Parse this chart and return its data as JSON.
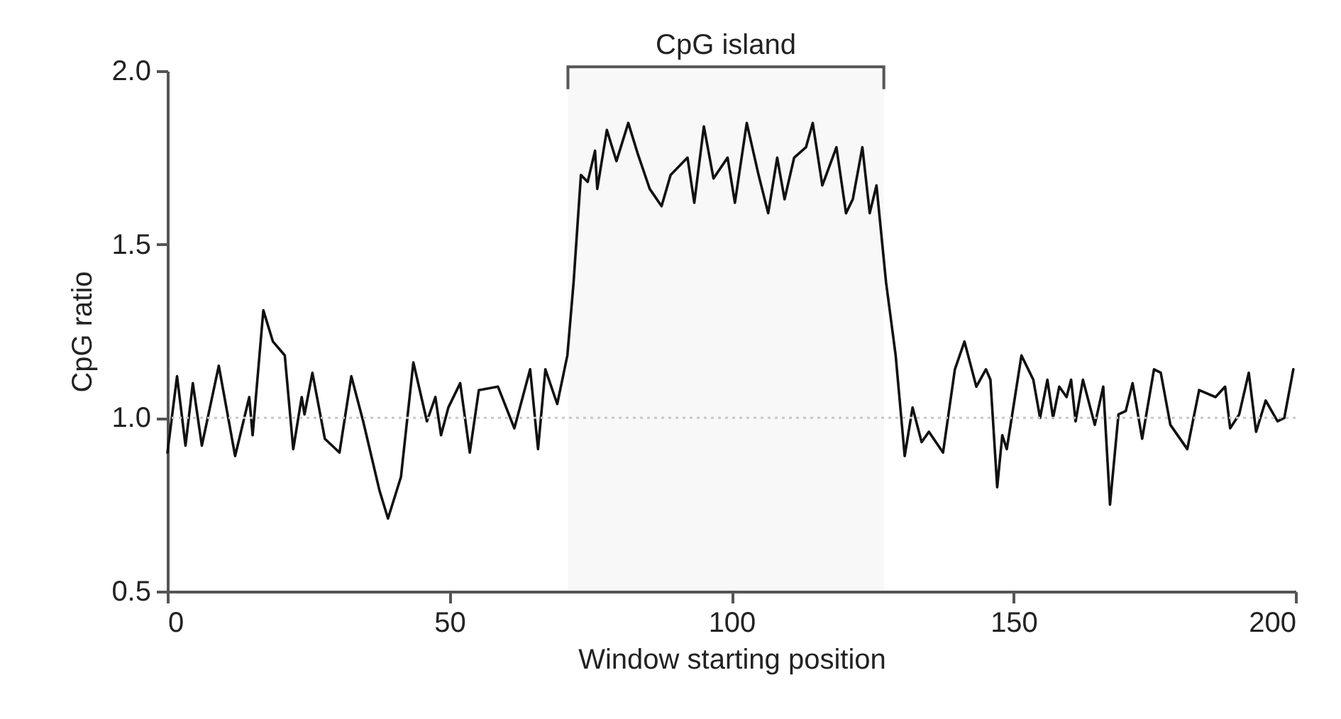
{
  "chart_data": {
    "type": "line",
    "xlabel": "Window starting position",
    "ylabel": "CpG ratio",
    "xlim": [
      0,
      200
    ],
    "xticks": [
      0,
      50,
      100,
      150,
      200
    ],
    "ylim": [
      0.5,
      2.0
    ],
    "yticks": [
      {
        "value": 0.5,
        "label": "0.5"
      },
      {
        "value": 1,
        "label": "1.0"
      },
      {
        "value": 1.5,
        "label": "1.5"
      },
      {
        "value": 2,
        "label": "2.0"
      }
    ],
    "grid": false,
    "marker": "none",
    "line_style": "solid",
    "ref_lines": [
      {
        "axis": "y",
        "value": 1,
        "color": "#c8c8c8",
        "line_style": "dotted"
      }
    ],
    "bands": [
      {
        "axis": "x",
        "from": 71,
        "to": 127,
        "label": "CpG island",
        "color": "#555555"
      }
    ],
    "series": [
      {
        "color": "#111111",
        "x": [
          0,
          1.7,
          3.2,
          4.5,
          6.1,
          9.1,
          12.0,
          14.5,
          15.1,
          17.0,
          18.7,
          20.8,
          22.3,
          23.8,
          24.3,
          25.7,
          27.9,
          30.5,
          32.6,
          34.7,
          37.6,
          39.1,
          41.4,
          43.6,
          46.0,
          47.5,
          48.5,
          49.8,
          51.9,
          53.6,
          55.2,
          58.6,
          61.5,
          64.3,
          65.7,
          67.0,
          69.1,
          70.9,
          72.0,
          73.3,
          74.5,
          75.8,
          76.2,
          77.9,
          79.6,
          81.7,
          83.4,
          85.5,
          87.6,
          89.2,
          92.2,
          93.4,
          95.1,
          96.8,
          99.3,
          100.6,
          102.7,
          104.8,
          106.5,
          108.1,
          109.4,
          111.1,
          113.2,
          114.4,
          116.1,
          118.6,
          120.3,
          121.5,
          123.2,
          124.5,
          125.7,
          127.4,
          129.1,
          130.7,
          132.1,
          133.7,
          135.0,
          137.5,
          139.6,
          141.3,
          143.4,
          145.1,
          145.9,
          147.1,
          148.0,
          148.8,
          151.4,
          153.5,
          154.7,
          156.0,
          157.0,
          158.1,
          159.4,
          160.2,
          161.0,
          162.3,
          164.4,
          165.9,
          167.1,
          168.6,
          169.9,
          171.1,
          172.8,
          174.9,
          176.1,
          177.8,
          180.8,
          182.9,
          185.8,
          187.5,
          188.4,
          190.0,
          191.7,
          193.0,
          194.7,
          196.8,
          198.0,
          199.6
        ],
        "values": [
          0.9,
          1.12,
          0.92,
          1.1,
          0.92,
          1.15,
          0.89,
          1.06,
          0.95,
          1.31,
          1.22,
          1.18,
          0.91,
          1.06,
          1.01,
          1.13,
          0.94,
          0.9,
          1.12,
          0.99,
          0.79,
          0.71,
          0.83,
          1.16,
          0.99,
          1.06,
          0.95,
          1.03,
          1.1,
          0.9,
          1.08,
          1.09,
          0.97,
          1.14,
          0.91,
          1.14,
          1.04,
          1.18,
          1.39,
          1.7,
          1.68,
          1.77,
          1.66,
          1.83,
          1.74,
          1.85,
          1.76,
          1.66,
          1.61,
          1.7,
          1.75,
          1.62,
          1.84,
          1.69,
          1.75,
          1.62,
          1.85,
          1.7,
          1.59,
          1.75,
          1.63,
          1.75,
          1.78,
          1.85,
          1.67,
          1.78,
          1.59,
          1.63,
          1.78,
          1.59,
          1.67,
          1.39,
          1.18,
          0.89,
          1.03,
          0.93,
          0.96,
          0.9,
          1.14,
          1.22,
          1.09,
          1.14,
          1.11,
          0.8,
          0.95,
          0.91,
          1.18,
          1.11,
          1.0,
          1.11,
          1.0,
          1.09,
          1.06,
          1.11,
          0.99,
          1.11,
          0.98,
          1.09,
          0.75,
          1.01,
          1.02,
          1.1,
          0.94,
          1.14,
          1.13,
          0.98,
          0.91,
          1.08,
          1.06,
          1.09,
          0.97,
          1.01,
          1.13,
          0.96,
          1.05,
          0.99,
          1.0,
          1.14
        ]
      }
    ]
  }
}
